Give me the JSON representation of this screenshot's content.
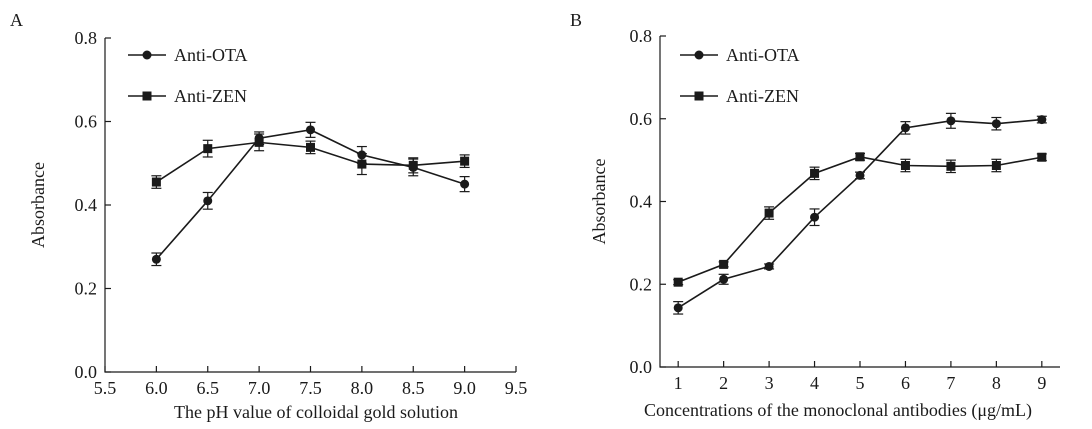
{
  "chart_data": [
    {
      "type": "line",
      "panel_label": "A",
      "xlabel": "The pH value of colloidal gold solution",
      "ylabel": "Absorbance",
      "xlim": [
        5.5,
        9.5
      ],
      "ylim": [
        0.0,
        0.8
      ],
      "xticks": [
        "5.5",
        "6.0",
        "6.5",
        "7.0",
        "7.5",
        "8.0",
        "8.5",
        "9.0",
        "9.5"
      ],
      "yticks": [
        "0.0",
        "0.2",
        "0.4",
        "0.6",
        "0.8"
      ],
      "grid": false,
      "legend_position": "top-left",
      "x": [
        6.0,
        6.5,
        7.0,
        7.5,
        8.0,
        8.5,
        9.0
      ],
      "series": [
        {
          "name": "Anti-OTA",
          "marker": "circle",
          "values": [
            0.27,
            0.41,
            0.56,
            0.58,
            0.52,
            0.49,
            0.45
          ],
          "errors": [
            0.015,
            0.02,
            0.015,
            0.018,
            0.02,
            0.02,
            0.018
          ]
        },
        {
          "name": "Anti-ZEN",
          "marker": "square",
          "values": [
            0.455,
            0.535,
            0.55,
            0.538,
            0.498,
            0.495,
            0.505
          ],
          "errors": [
            0.015,
            0.02,
            0.02,
            0.015,
            0.025,
            0.018,
            0.015
          ]
        }
      ]
    },
    {
      "type": "line",
      "panel_label": "B",
      "xlabel": "Concentrations of the monoclonal antibodies (μg/mL)",
      "ylabel": "Absorbance",
      "xlim": [
        0.6,
        9.4
      ],
      "ylim": [
        0.0,
        0.8
      ],
      "xticks": [
        "1",
        "2",
        "3",
        "4",
        "5",
        "6",
        "7",
        "8",
        "9"
      ],
      "yticks": [
        "0.0",
        "0.2",
        "0.4",
        "0.6",
        "0.8"
      ],
      "grid": false,
      "legend_position": "top-left",
      "x": [
        1,
        2,
        3,
        4,
        5,
        6,
        7,
        8,
        9
      ],
      "series": [
        {
          "name": "Anti-OTA",
          "marker": "circle",
          "values": [
            0.143,
            0.212,
            0.243,
            0.362,
            0.463,
            0.578,
            0.595,
            0.588,
            0.598
          ],
          "errors": [
            0.015,
            0.012,
            0.006,
            0.02,
            0.008,
            0.015,
            0.018,
            0.015,
            0.008
          ]
        },
        {
          "name": "Anti-ZEN",
          "marker": "square",
          "values": [
            0.205,
            0.248,
            0.372,
            0.468,
            0.508,
            0.487,
            0.485,
            0.487,
            0.507
          ],
          "errors": [
            0.006,
            0.006,
            0.015,
            0.015,
            0.008,
            0.015,
            0.015,
            0.015,
            0.008
          ]
        }
      ]
    }
  ]
}
